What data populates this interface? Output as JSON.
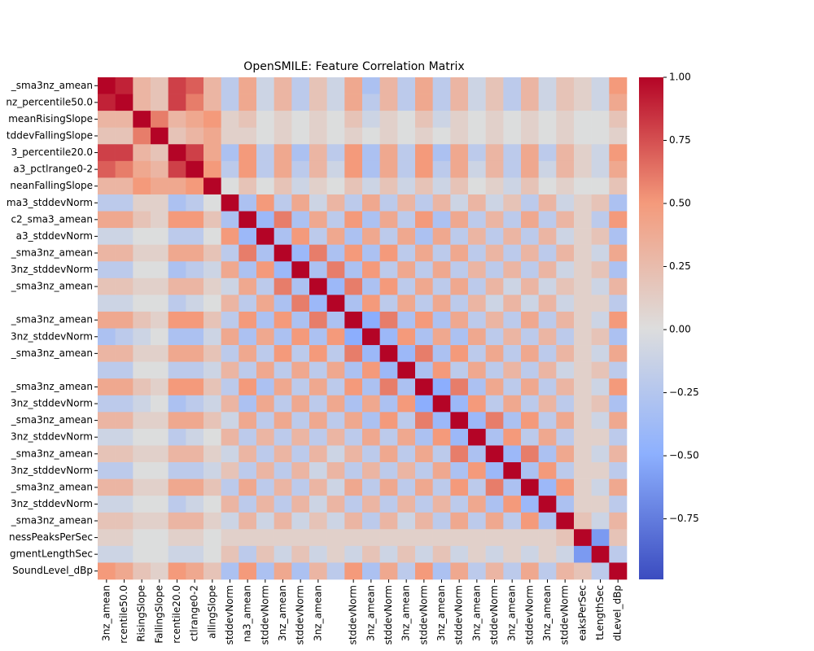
{
  "chart_data": {
    "type": "heatmap",
    "title": "OpenSMILE: Feature Correlation Matrix",
    "y_categories": [
      "_sma3nz_amean",
      "nz_percentile50.0",
      "meanRisingSlope",
      "tddevFallingSlope",
      "3_percentile20.0",
      "a3_pctlrange0-2",
      "neanFallingSlope",
      "ma3_stddevNorm",
      "c2_sma3_amean",
      "a3_stddevNorm",
      "_sma3nz_amean",
      "3nz_stddevNorm",
      "_sma3nz_amean",
      null,
      "_sma3nz_amean",
      "3nz_stddevNorm",
      "_sma3nz_amean",
      null,
      "_sma3nz_amean",
      "3nz_stddevNorm",
      "_sma3nz_amean",
      "3nz_stddevNorm",
      "_sma3nz_amean",
      "3nz_stddevNorm",
      "_sma3nz_amean",
      "3nz_stddevNorm",
      "_sma3nz_amean",
      "nessPeaksPerSec",
      "gmentLengthSec",
      "SoundLevel_dBp"
    ],
    "x_categories": [
      "3nz_amean",
      "rcentile50.0",
      "RisingSlope",
      "FallingSlope",
      "rcentile20.0",
      "ctlrange0-2",
      "allingSlope",
      "stddevNorm",
      "na3_amean",
      "stddevNorm",
      "3nz_amean",
      "stddevNorm",
      "3nz_amean",
      null,
      "stddevNorm",
      "3nz_amean",
      "stddevNorm",
      "3nz_amean",
      "stddevNorm",
      "3nz_amean",
      "stddevNorm",
      "3nz_amean",
      "stddevNorm",
      "3nz_amean",
      "stddevNorm",
      "3nz_amean",
      "stddevNorm",
      "eaksPerSec",
      "tLengthSec",
      "dLevel_dBp"
    ],
    "values": [
      [
        1,
        0.9,
        0.3,
        0.2,
        0.8,
        0.7,
        0.3,
        -0.2,
        0.4,
        -0.1,
        0.3,
        -0.2,
        0.2,
        -0.1,
        0.4,
        -0.3,
        0.3,
        -0.2,
        0.4,
        -0.2,
        0.3,
        -0.1,
        0.2,
        -0.2,
        0.3,
        -0.1,
        0.2,
        0.1,
        -0.1,
        0.5
      ],
      [
        0.9,
        1,
        0.3,
        0.2,
        0.8,
        0.6,
        0.3,
        -0.2,
        0.4,
        -0.1,
        0.3,
        -0.2,
        0.2,
        -0.1,
        0.4,
        -0.2,
        0.3,
        -0.2,
        0.4,
        -0.2,
        0.3,
        -0.1,
        0.2,
        -0.2,
        0.3,
        -0.1,
        0.2,
        0.1,
        -0.1,
        0.4
      ],
      [
        0.3,
        0.3,
        1,
        0.6,
        0.3,
        0.4,
        0.5,
        0.1,
        0.2,
        0.0,
        0.1,
        0.0,
        0.1,
        0.0,
        0.2,
        -0.1,
        0.1,
        0.0,
        0.2,
        -0.1,
        0.1,
        0.0,
        0.1,
        0.0,
        0.1,
        0.0,
        0.1,
        0.0,
        0.0,
        0.2
      ],
      [
        0.2,
        0.2,
        0.6,
        1,
        0.2,
        0.3,
        0.4,
        0.1,
        0.1,
        0.0,
        0.1,
        0.0,
        0.1,
        0.0,
        0.1,
        0.0,
        0.1,
        0.0,
        0.1,
        0.0,
        0.1,
        0.0,
        0.1,
        0.0,
        0.1,
        0.0,
        0.1,
        0.0,
        0.0,
        0.1
      ],
      [
        0.8,
        0.8,
        0.3,
        0.2,
        1,
        0.8,
        0.4,
        -0.3,
        0.5,
        -0.2,
        0.4,
        -0.3,
        0.3,
        -0.2,
        0.5,
        -0.3,
        0.4,
        -0.2,
        0.5,
        -0.3,
        0.4,
        -0.2,
        0.3,
        -0.2,
        0.4,
        -0.2,
        0.3,
        0.1,
        -0.1,
        0.5
      ],
      [
        0.7,
        0.6,
        0.4,
        0.3,
        0.8,
        1,
        0.5,
        -0.2,
        0.5,
        -0.2,
        0.4,
        -0.2,
        0.3,
        -0.1,
        0.5,
        -0.3,
        0.4,
        -0.2,
        0.5,
        -0.2,
        0.4,
        -0.1,
        0.3,
        -0.2,
        0.4,
        -0.1,
        0.3,
        0.1,
        -0.1,
        0.4
      ],
      [
        0.3,
        0.3,
        0.5,
        0.4,
        0.4,
        0.5,
        1,
        0.0,
        0.2,
        0.0,
        0.2,
        -0.1,
        0.1,
        0.0,
        0.2,
        -0.1,
        0.2,
        -0.1,
        0.2,
        -0.1,
        0.2,
        0.0,
        0.1,
        -0.1,
        0.2,
        0.0,
        0.1,
        0.0,
        0.0,
        0.2
      ],
      [
        -0.2,
        -0.2,
        0.1,
        0.1,
        -0.3,
        -0.2,
        0.0,
        1,
        -0.3,
        0.5,
        -0.2,
        0.4,
        -0.1,
        0.3,
        -0.2,
        0.4,
        -0.2,
        0.3,
        -0.2,
        0.3,
        -0.1,
        0.3,
        -0.1,
        0.2,
        -0.2,
        0.3,
        -0.1,
        0.1,
        0.2,
        -0.3
      ],
      [
        0.4,
        0.4,
        0.2,
        0.1,
        0.5,
        0.5,
        0.2,
        -0.3,
        1,
        -0.4,
        0.6,
        -0.3,
        0.4,
        -0.2,
        0.5,
        -0.3,
        0.4,
        -0.2,
        0.5,
        -0.3,
        0.4,
        -0.2,
        0.3,
        -0.2,
        0.4,
        -0.2,
        0.3,
        0.1,
        -0.2,
        0.5
      ],
      [
        -0.1,
        -0.1,
        0.0,
        0.0,
        -0.2,
        -0.2,
        0.0,
        0.5,
        -0.4,
        1,
        -0.3,
        0.5,
        -0.2,
        0.4,
        -0.3,
        0.4,
        -0.2,
        0.4,
        -0.3,
        0.4,
        -0.2,
        0.3,
        -0.2,
        0.3,
        -0.2,
        0.3,
        -0.1,
        0.1,
        0.2,
        -0.3
      ],
      [
        0.3,
        0.3,
        0.1,
        0.1,
        0.4,
        0.4,
        0.2,
        -0.2,
        0.6,
        -0.3,
        1,
        -0.4,
        0.6,
        -0.3,
        0.5,
        -0.3,
        0.5,
        -0.2,
        0.4,
        -0.2,
        0.4,
        -0.2,
        0.3,
        -0.2,
        0.3,
        -0.2,
        0.3,
        0.1,
        -0.1,
        0.4
      ],
      [
        -0.2,
        -0.2,
        0.0,
        0.0,
        -0.3,
        -0.2,
        -0.1,
        0.4,
        -0.3,
        0.5,
        -0.4,
        1,
        -0.3,
        0.6,
        -0.3,
        0.5,
        -0.2,
        0.4,
        -0.2,
        0.4,
        -0.2,
        0.3,
        -0.2,
        0.3,
        -0.2,
        0.3,
        -0.1,
        0.1,
        0.2,
        -0.3
      ],
      [
        0.2,
        0.2,
        0.1,
        0.1,
        0.3,
        0.3,
        0.1,
        -0.1,
        0.4,
        -0.2,
        0.6,
        -0.3,
        1,
        -0.4,
        0.6,
        -0.3,
        0.5,
        -0.2,
        0.4,
        -0.2,
        0.4,
        -0.2,
        0.3,
        -0.1,
        0.3,
        -0.1,
        0.2,
        0.1,
        -0.1,
        0.3
      ],
      [
        -0.1,
        -0.1,
        0.0,
        0.0,
        -0.2,
        -0.1,
        0.0,
        0.3,
        -0.2,
        0.4,
        -0.3,
        0.6,
        -0.4,
        1,
        -0.3,
        0.5,
        -0.2,
        0.4,
        -0.2,
        0.4,
        -0.2,
        0.3,
        -0.1,
        0.3,
        -0.1,
        0.3,
        -0.1,
        0.1,
        0.1,
        -0.2
      ],
      [
        0.4,
        0.4,
        0.2,
        0.1,
        0.5,
        0.5,
        0.2,
        -0.2,
        0.5,
        -0.3,
        0.5,
        -0.3,
        0.6,
        -0.3,
        1,
        -0.5,
        0.6,
        -0.3,
        0.5,
        -0.3,
        0.4,
        -0.2,
        0.3,
        -0.2,
        0.4,
        -0.2,
        0.3,
        0.1,
        -0.1,
        0.5
      ],
      [
        -0.3,
        -0.2,
        -0.1,
        0.0,
        -0.3,
        -0.3,
        -0.1,
        0.4,
        -0.3,
        0.4,
        -0.3,
        0.5,
        -0.3,
        0.5,
        -0.5,
        1,
        -0.4,
        0.5,
        -0.3,
        0.4,
        -0.3,
        0.4,
        -0.2,
        0.3,
        -0.2,
        0.3,
        -0.2,
        0.1,
        0.2,
        -0.3
      ],
      [
        0.3,
        0.3,
        0.1,
        0.1,
        0.4,
        0.4,
        0.2,
        -0.2,
        0.4,
        -0.2,
        0.5,
        -0.2,
        0.5,
        -0.2,
        0.6,
        -0.4,
        1,
        -0.4,
        0.6,
        -0.3,
        0.5,
        -0.2,
        0.4,
        -0.2,
        0.4,
        -0.2,
        0.3,
        0.1,
        -0.1,
        0.4
      ],
      [
        -0.2,
        -0.2,
        0.0,
        0.0,
        -0.2,
        -0.2,
        -0.1,
        0.3,
        -0.2,
        0.4,
        -0.2,
        0.4,
        -0.2,
        0.4,
        -0.3,
        0.5,
        -0.4,
        1,
        -0.3,
        0.5,
        -0.2,
        0.4,
        -0.2,
        0.3,
        -0.2,
        0.3,
        -0.1,
        0.1,
        0.2,
        -0.2
      ],
      [
        0.4,
        0.4,
        0.2,
        0.1,
        0.5,
        0.5,
        0.2,
        -0.2,
        0.5,
        -0.3,
        0.4,
        -0.2,
        0.4,
        -0.2,
        0.5,
        -0.3,
        0.6,
        -0.3,
        1,
        -0.5,
        0.6,
        -0.3,
        0.4,
        -0.2,
        0.4,
        -0.2,
        0.3,
        0.1,
        -0.1,
        0.5
      ],
      [
        -0.2,
        -0.2,
        -0.1,
        0.0,
        -0.3,
        -0.2,
        -0.1,
        0.3,
        -0.3,
        0.4,
        -0.2,
        0.4,
        -0.2,
        0.4,
        -0.3,
        0.4,
        -0.3,
        0.5,
        -0.5,
        1,
        -0.4,
        0.5,
        -0.2,
        0.4,
        -0.2,
        0.3,
        -0.2,
        0.1,
        0.2,
        -0.3
      ],
      [
        0.3,
        0.3,
        0.1,
        0.1,
        0.4,
        0.4,
        0.2,
        -0.1,
        0.4,
        -0.2,
        0.4,
        -0.2,
        0.4,
        -0.2,
        0.4,
        -0.3,
        0.5,
        -0.2,
        0.6,
        -0.4,
        1,
        -0.4,
        0.6,
        -0.3,
        0.5,
        -0.2,
        0.4,
        0.1,
        -0.1,
        0.4
      ],
      [
        -0.1,
        -0.1,
        0.0,
        0.0,
        -0.2,
        -0.1,
        0.0,
        0.3,
        -0.2,
        0.3,
        -0.2,
        0.3,
        -0.2,
        0.3,
        -0.2,
        0.4,
        -0.2,
        0.4,
        -0.3,
        0.5,
        -0.4,
        1,
        -0.3,
        0.5,
        -0.2,
        0.4,
        -0.2,
        0.1,
        0.1,
        -0.2
      ],
      [
        0.2,
        0.2,
        0.1,
        0.1,
        0.3,
        0.3,
        0.1,
        -0.1,
        0.3,
        -0.2,
        0.3,
        -0.2,
        0.3,
        -0.1,
        0.3,
        -0.2,
        0.4,
        -0.2,
        0.4,
        -0.2,
        0.6,
        -0.3,
        1,
        -0.4,
        0.6,
        -0.3,
        0.4,
        0.1,
        -0.1,
        0.3
      ],
      [
        -0.2,
        -0.2,
        0.0,
        0.0,
        -0.2,
        -0.2,
        -0.1,
        0.2,
        -0.2,
        0.3,
        -0.2,
        0.3,
        -0.1,
        0.3,
        -0.2,
        0.3,
        -0.2,
        0.3,
        -0.2,
        0.4,
        -0.3,
        0.5,
        -0.4,
        1,
        -0.3,
        0.5,
        -0.2,
        0.1,
        0.1,
        -0.2
      ],
      [
        0.3,
        0.3,
        0.1,
        0.1,
        0.4,
        0.4,
        0.2,
        -0.2,
        0.4,
        -0.2,
        0.3,
        -0.2,
        0.3,
        -0.1,
        0.4,
        -0.2,
        0.4,
        -0.2,
        0.4,
        -0.2,
        0.5,
        -0.2,
        0.6,
        -0.3,
        1,
        -0.4,
        0.5,
        0.1,
        -0.1,
        0.4
      ],
      [
        -0.1,
        -0.1,
        0.0,
        0.0,
        -0.2,
        -0.1,
        0.0,
        0.3,
        -0.2,
        0.3,
        -0.2,
        0.3,
        -0.1,
        0.3,
        -0.2,
        0.3,
        -0.2,
        0.3,
        -0.2,
        0.3,
        -0.2,
        0.4,
        -0.3,
        0.5,
        -0.4,
        1,
        -0.3,
        0.1,
        0.1,
        -0.2
      ],
      [
        0.2,
        0.2,
        0.1,
        0.1,
        0.3,
        0.3,
        0.1,
        -0.1,
        0.3,
        -0.1,
        0.3,
        -0.1,
        0.2,
        -0.1,
        0.3,
        -0.2,
        0.3,
        -0.1,
        0.3,
        -0.2,
        0.4,
        -0.2,
        0.4,
        -0.2,
        0.5,
        -0.3,
        1,
        0.2,
        -0.1,
        0.3
      ],
      [
        0.1,
        0.1,
        0.0,
        0.0,
        0.1,
        0.1,
        0.0,
        0.1,
        0.1,
        0.1,
        0.1,
        0.1,
        0.1,
        0.1,
        0.1,
        0.1,
        0.1,
        0.1,
        0.1,
        0.1,
        0.1,
        0.1,
        0.1,
        0.1,
        0.1,
        0.1,
        0.2,
        1,
        -0.6,
        0.2
      ],
      [
        -0.1,
        -0.1,
        0.0,
        0.0,
        -0.1,
        -0.1,
        0.0,
        0.2,
        -0.2,
        0.2,
        -0.1,
        0.2,
        -0.1,
        0.1,
        -0.1,
        0.2,
        -0.1,
        0.2,
        -0.1,
        0.2,
        -0.1,
        0.1,
        -0.1,
        0.1,
        -0.1,
        0.1,
        -0.1,
        -0.6,
        1,
        -0.2
      ],
      [
        0.5,
        0.4,
        0.2,
        0.1,
        0.5,
        0.4,
        0.2,
        -0.3,
        0.5,
        -0.3,
        0.4,
        -0.3,
        0.3,
        -0.2,
        0.5,
        -0.3,
        0.4,
        -0.2,
        0.5,
        -0.3,
        0.4,
        -0.2,
        0.3,
        -0.2,
        0.4,
        -0.2,
        0.3,
        0.2,
        -0.2,
        1
      ]
    ],
    "colormap_colors": [
      "#3b4cc0",
      "#8db0fe",
      "#dddddd",
      "#f49a7b",
      "#b40426"
    ],
    "clim": [
      -0.99,
      1.0
    ],
    "cticks": [
      {
        "value": 1.0,
        "label": "1.00"
      },
      {
        "value": 0.75,
        "label": "0.75"
      },
      {
        "value": 0.5,
        "label": "0.50"
      },
      {
        "value": 0.25,
        "label": "0.25"
      },
      {
        "value": 0.0,
        "label": "0.00"
      },
      {
        "value": -0.25,
        "label": "−0.25"
      },
      {
        "value": -0.5,
        "label": "−0.50"
      },
      {
        "value": -0.75,
        "label": "−0.75"
      }
    ]
  }
}
